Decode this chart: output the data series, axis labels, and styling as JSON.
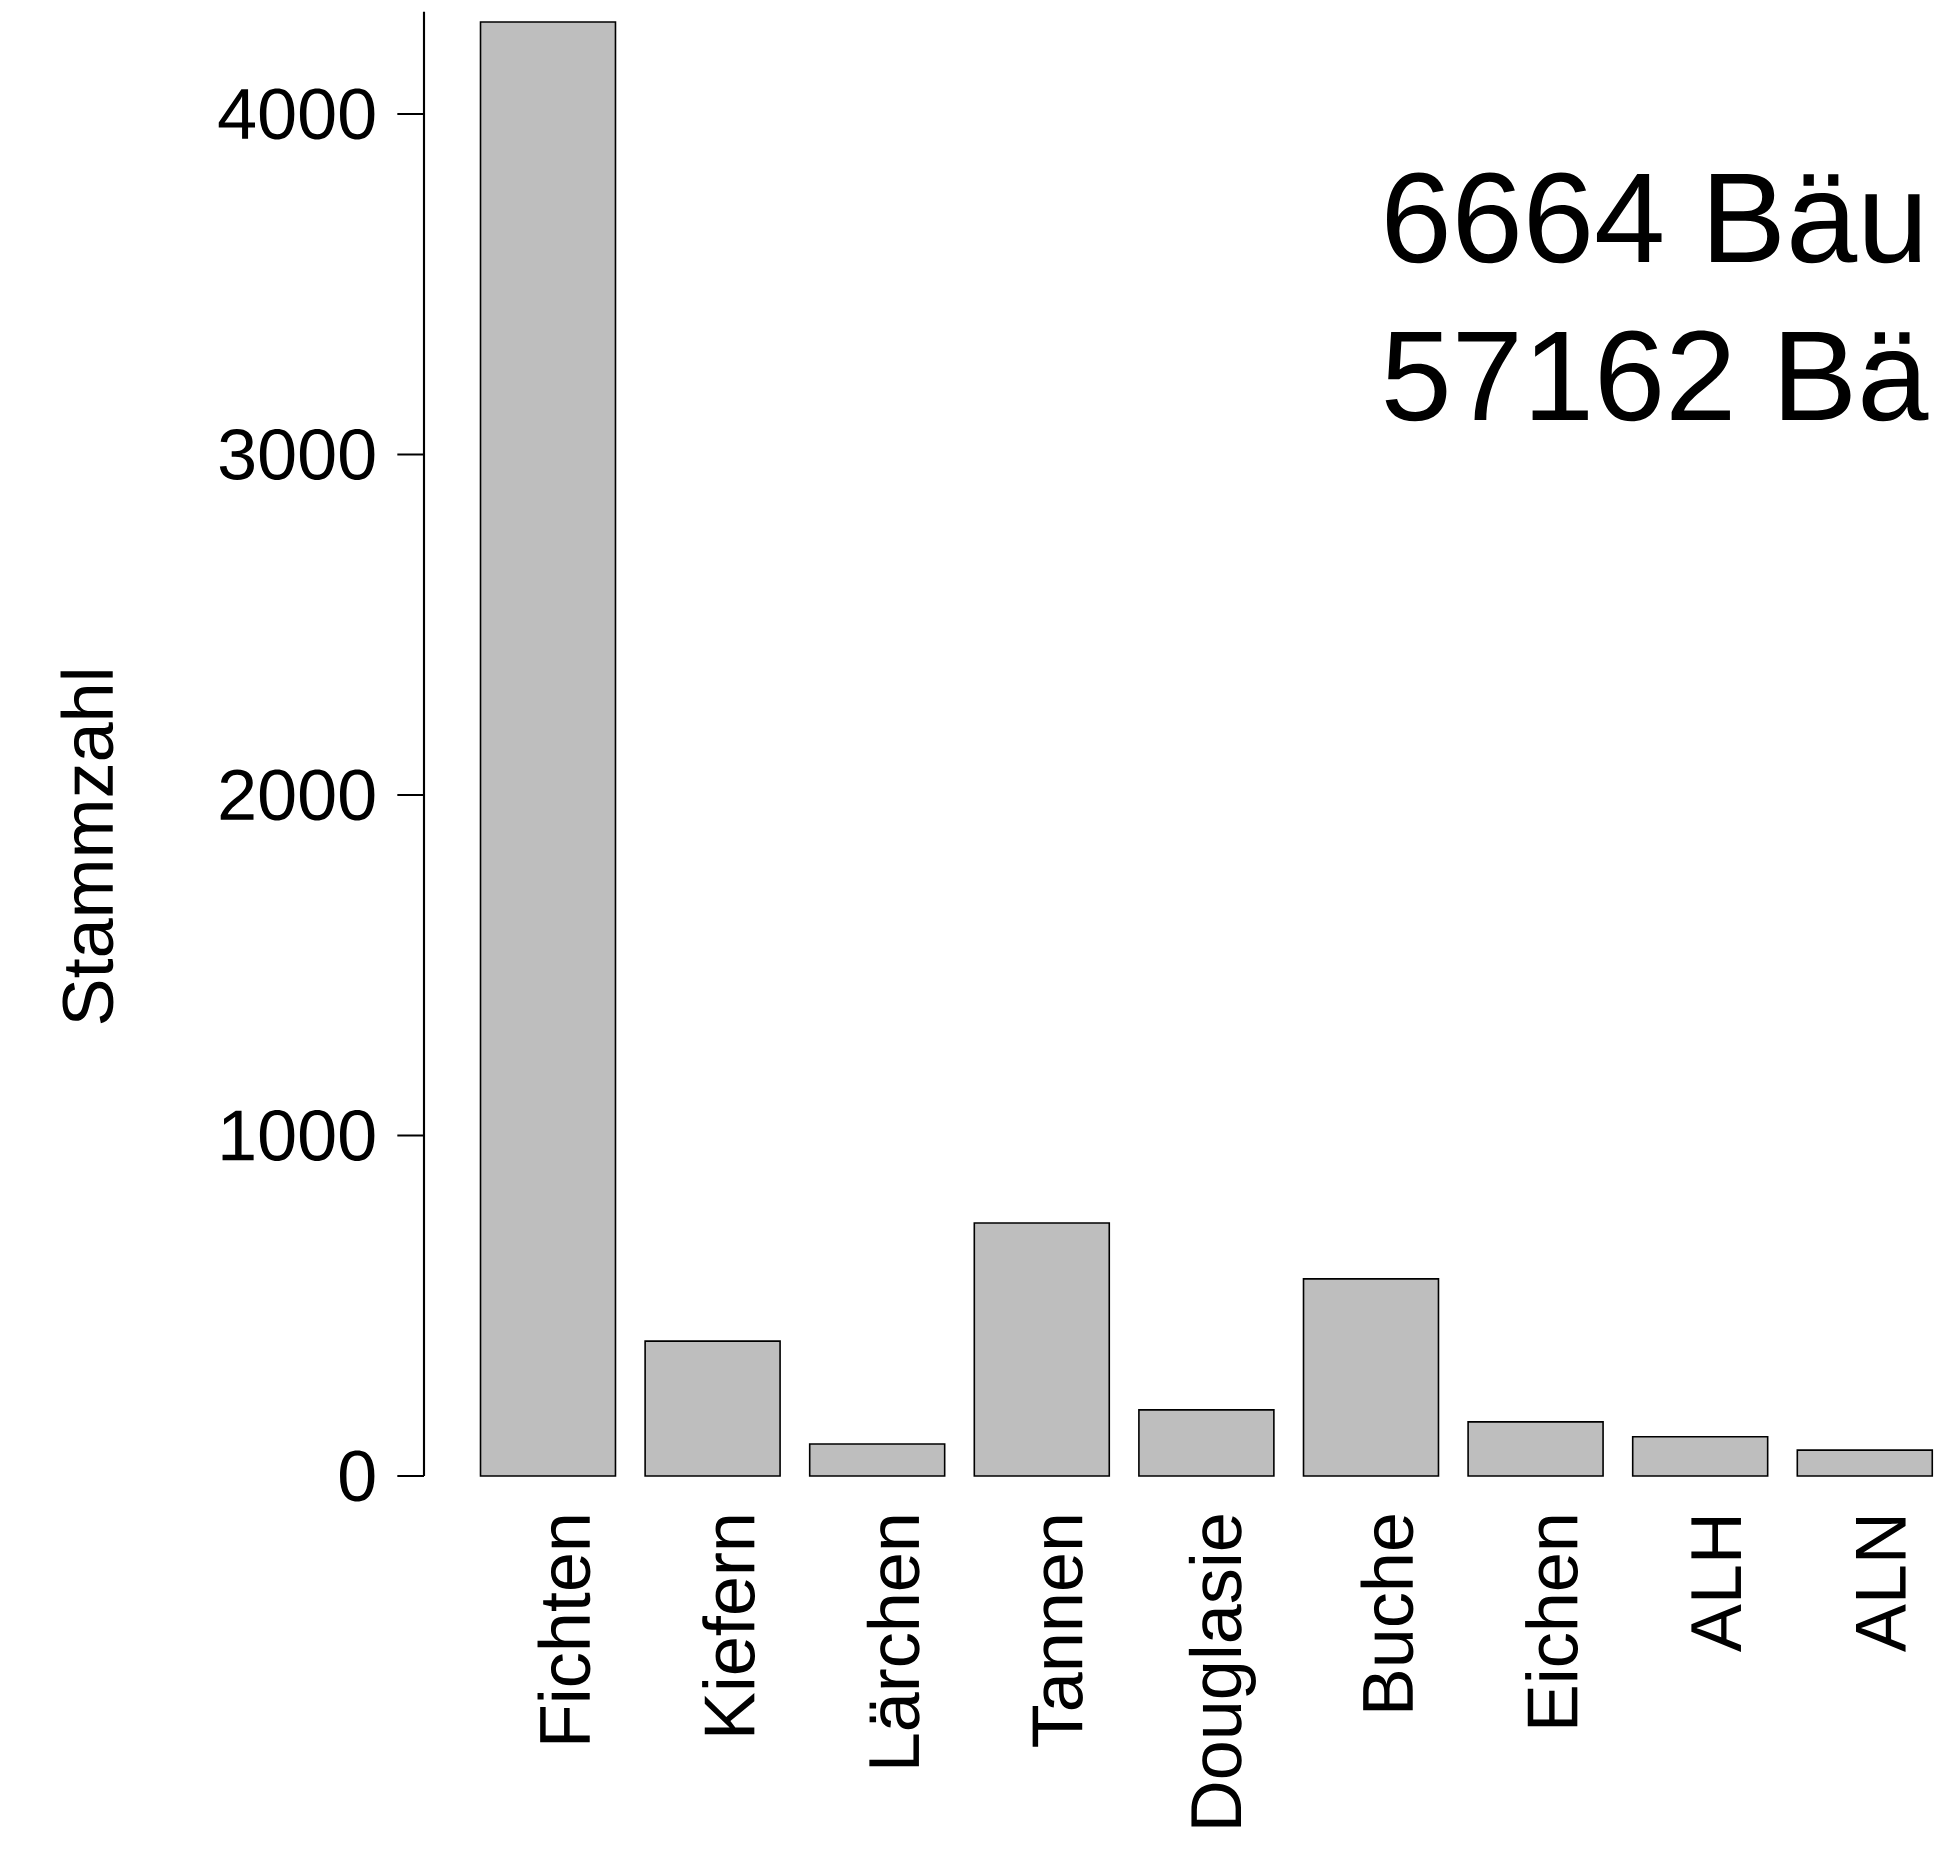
{
  "chart_data": {
    "type": "bar",
    "ylabel": "Stammzahl",
    "categories": [
      "Fichten",
      "Kiefern",
      "Lärchen",
      "Tannen",
      "Douglasie",
      "Buche",
      "Eichen",
      "ALH",
      "ALN"
    ],
    "values": [
      4270,
      396,
      94,
      743,
      194,
      579,
      159,
      115,
      76
    ],
    "color": "#bebebe",
    "ylim": [
      0,
      4300
    ],
    "yticks": [
      0,
      1000,
      2000,
      3000,
      4000
    ],
    "annotations": [
      "6664 Bäu",
      "57162 Bä"
    ]
  }
}
